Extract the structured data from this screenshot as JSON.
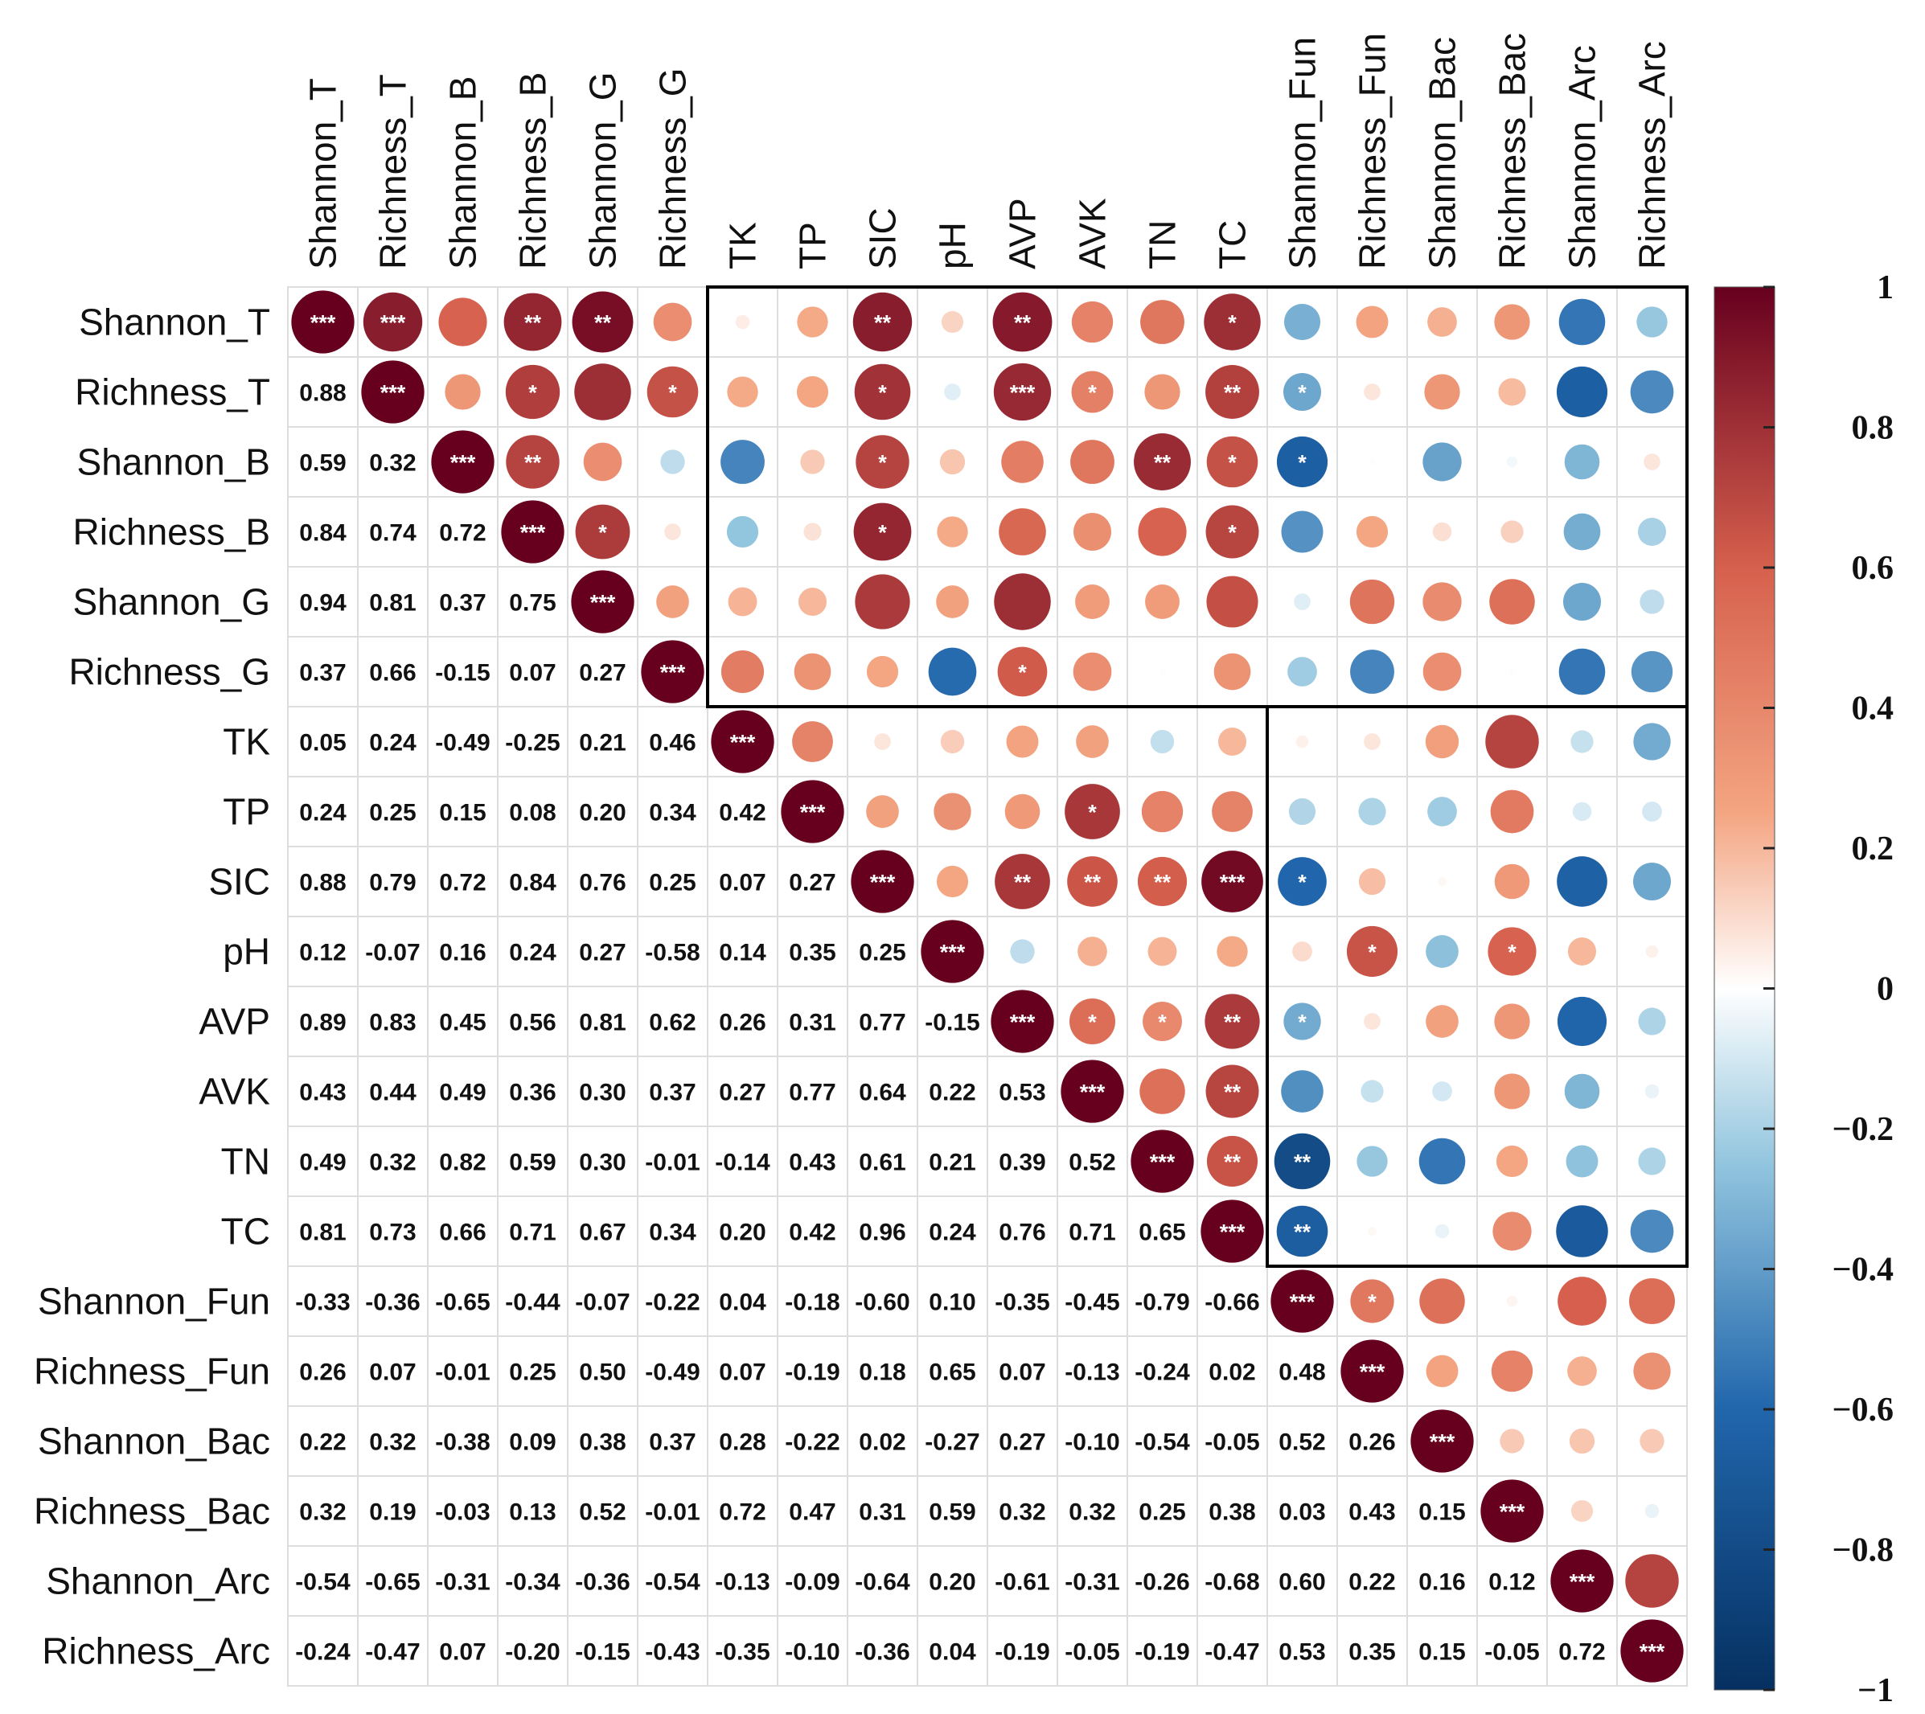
{
  "chart_data": {
    "type": "heatmap",
    "subtype": "correlation-matrix",
    "variables": [
      "Shannon_T",
      "Richness_T",
      "Shannon_B",
      "Richness_B",
      "Shannon_G",
      "Richness_G",
      "TK",
      "TP",
      "SIC",
      "pH",
      "AVP",
      "AVK",
      "TN",
      "TC",
      "Shannon_Fun",
      "Richness_Fun",
      "Shannon_Bac",
      "Richness_Bac",
      "Shannon_Arc",
      "Richness_Arc"
    ],
    "lower_triangle_values": [
      [],
      [
        0.88
      ],
      [
        0.59,
        0.32
      ],
      [
        0.84,
        0.74,
        0.72
      ],
      [
        0.94,
        0.81,
        0.37,
        0.75
      ],
      [
        0.37,
        0.66,
        -0.15,
        0.07,
        0.27
      ],
      [
        0.05,
        0.24,
        -0.49,
        -0.25,
        0.21,
        0.46
      ],
      [
        0.24,
        0.25,
        0.15,
        0.08,
        0.2,
        0.34,
        0.42
      ],
      [
        0.88,
        0.79,
        0.72,
        0.84,
        0.76,
        0.25,
        0.07,
        0.27
      ],
      [
        0.12,
        -0.07,
        0.16,
        0.24,
        0.27,
        -0.58,
        0.14,
        0.35,
        0.25
      ],
      [
        0.89,
        0.83,
        0.45,
        0.56,
        0.81,
        0.62,
        0.26,
        0.31,
        0.77,
        -0.15
      ],
      [
        0.43,
        0.44,
        0.49,
        0.36,
        0.3,
        0.37,
        0.27,
        0.77,
        0.64,
        0.22,
        0.53
      ],
      [
        0.49,
        0.32,
        0.82,
        0.59,
        0.3,
        -0.01,
        -0.14,
        0.43,
        0.61,
        0.21,
        0.39,
        0.52
      ],
      [
        0.81,
        0.73,
        0.66,
        0.71,
        0.67,
        0.34,
        0.2,
        0.42,
        0.96,
        0.24,
        0.76,
        0.71,
        0.65
      ],
      [
        -0.33,
        -0.36,
        -0.65,
        -0.44,
        -0.07,
        -0.22,
        0.04,
        -0.18,
        -0.6,
        0.1,
        -0.35,
        -0.45,
        -0.79,
        -0.66
      ],
      [
        0.26,
        0.07,
        -0.01,
        0.25,
        0.5,
        -0.49,
        0.07,
        -0.19,
        0.18,
        0.65,
        0.07,
        -0.13,
        -0.24,
        0.02,
        0.48
      ],
      [
        0.22,
        0.32,
        -0.38,
        0.09,
        0.38,
        0.37,
        0.28,
        -0.22,
        0.02,
        -0.27,
        0.27,
        -0.1,
        -0.54,
        -0.05,
        0.52,
        0.26
      ],
      [
        0.32,
        0.19,
        -0.03,
        0.13,
        0.52,
        -0.01,
        0.72,
        0.47,
        0.31,
        0.59,
        0.32,
        0.32,
        0.25,
        0.38,
        0.03,
        0.43,
        0.15
      ],
      [
        -0.54,
        -0.65,
        -0.31,
        -0.34,
        -0.36,
        -0.54,
        -0.13,
        -0.09,
        -0.64,
        0.2,
        -0.61,
        -0.31,
        -0.26,
        -0.68,
        0.6,
        0.22,
        0.16,
        0.12
      ],
      [
        -0.24,
        -0.47,
        0.07,
        -0.2,
        -0.15,
        -0.43,
        -0.35,
        -0.1,
        -0.36,
        0.04,
        -0.19,
        -0.05,
        -0.19,
        -0.47,
        0.53,
        0.35,
        0.15,
        -0.05,
        0.72
      ]
    ],
    "upper_triangle_significance": [
      [
        "***",
        "***",
        "",
        "**",
        "**",
        "",
        "",
        "",
        "**",
        "",
        "**",
        "",
        "",
        "*",
        "",
        "",
        "",
        "",
        "",
        ""
      ],
      [
        "",
        "***",
        "",
        "*",
        "",
        "*",
        "",
        "",
        "*",
        "",
        "***",
        "*",
        "",
        "**",
        "*",
        "",
        "",
        "",
        "",
        ""
      ],
      [
        "",
        "",
        "***",
        "**",
        "",
        "",
        "",
        "",
        "*",
        "",
        "",
        "",
        "**",
        "*",
        "*",
        "",
        "",
        "",
        "",
        ""
      ],
      [
        "",
        "",
        "",
        "***",
        "*",
        "",
        "",
        "",
        "*",
        "",
        "",
        "",
        "",
        "*",
        "",
        "",
        "",
        "",
        "",
        ""
      ],
      [
        "",
        "",
        "",
        "",
        "***",
        "",
        "",
        "",
        "",
        "",
        "",
        "",
        "",
        "",
        "",
        "",
        "",
        "",
        "",
        ""
      ],
      [
        "",
        "",
        "",
        "",
        "",
        "***",
        "",
        "",
        "",
        "",
        "*",
        "",
        "",
        "",
        "",
        "",
        "",
        "",
        "",
        ""
      ],
      [
        "",
        "",
        "",
        "",
        "",
        "",
        "***",
        "",
        "",
        "",
        "",
        "",
        "",
        "",
        "",
        "",
        "",
        "",
        "",
        ""
      ],
      [
        "",
        "",
        "",
        "",
        "",
        "",
        "",
        "***",
        "",
        "",
        "",
        "*",
        "",
        "",
        "",
        "",
        "",
        "",
        "",
        ""
      ],
      [
        "",
        "",
        "",
        "",
        "",
        "",
        "",
        "",
        "***",
        "",
        "**",
        "**",
        "**",
        "***",
        "*",
        "",
        "",
        "",
        "",
        ""
      ],
      [
        "",
        "",
        "",
        "",
        "",
        "",
        "",
        "",
        "",
        "***",
        "",
        "",
        "",
        "",
        "",
        "*",
        "",
        "*",
        "",
        ""
      ],
      [
        "",
        "",
        "",
        "",
        "",
        "",
        "",
        "",
        "",
        "",
        "***",
        "*",
        "*",
        "**",
        "*",
        "",
        "",
        "",
        "",
        ""
      ],
      [
        "",
        "",
        "",
        "",
        "",
        "",
        "",
        "",
        "",
        "",
        "",
        "***",
        "",
        "**",
        "",
        "",
        "",
        "",
        "",
        ""
      ],
      [
        "",
        "",
        "",
        "",
        "",
        "",
        "",
        "",
        "",
        "",
        "",
        "",
        "***",
        "**",
        "**",
        "",
        "",
        "",
        "",
        ""
      ],
      [
        "",
        "",
        "",
        "",
        "",
        "",
        "",
        "",
        "",
        "",
        "",
        "",
        "",
        "***",
        "**",
        "",
        "",
        "",
        "",
        ""
      ],
      [
        "",
        "",
        "",
        "",
        "",
        "",
        "",
        "",
        "",
        "",
        "",
        "",
        "",
        "",
        "***",
        "*",
        "",
        "",
        "",
        ""
      ],
      [
        "",
        "",
        "",
        "",
        "",
        "",
        "",
        "",
        "",
        "",
        "",
        "",
        "",
        "",
        "",
        "***",
        "",
        "",
        "",
        ""
      ],
      [
        "",
        "",
        "",
        "",
        "",
        "",
        "",
        "",
        "",
        "",
        "",
        "",
        "",
        "",
        "",
        "",
        "***",
        "",
        "",
        ""
      ],
      [
        "",
        "",
        "",
        "",
        "",
        "",
        "",
        "",
        "",
        "",
        "",
        "",
        "",
        "",
        "",
        "",
        "",
        "***",
        "",
        ""
      ],
      [
        "",
        "",
        "",
        "",
        "",
        "",
        "",
        "",
        "",
        "",
        "",
        "",
        "",
        "",
        "",
        "",
        "",
        "",
        "***",
        ""
      ],
      [
        "",
        "",
        "",
        "",
        "",
        "",
        "",
        "",
        "",
        "",
        "",
        "",
        "",
        "",
        "",
        "",
        "",
        "",
        "",
        "***"
      ]
    ],
    "colorbar": {
      "range": [
        -1,
        1
      ],
      "tick_labels": [
        "1",
        "0.8",
        "0.6",
        "0.4",
        "0.2",
        "0",
        "−0.2",
        "−0.4",
        "−0.6",
        "−0.8",
        "−1"
      ],
      "tick_values": [
        1,
        0.8,
        0.6,
        0.4,
        0.2,
        0,
        -0.2,
        -0.4,
        -0.6,
        -0.8,
        -1
      ]
    },
    "color_scale": {
      "negative_strong": "#053061",
      "negative_mid": "#2166ac",
      "negative_light": "#92c5de",
      "neutral": "#ffffff",
      "positive_light": "#f4a582",
      "positive_mid": "#d6604d",
      "positive_strong": "#67001f"
    },
    "upper_glyph": "circle (size and color scale with correlation)",
    "lower_glyph": "number",
    "highlight_boxes": [
      {
        "rows": [
          "Shannon_T",
          "Richness_G"
        ],
        "cols": [
          "TK",
          "Richness_Arc"
        ]
      },
      {
        "rows": [
          "TK",
          "TC"
        ],
        "cols": [
          "Shannon_Fun",
          "Richness_Arc"
        ]
      }
    ]
  }
}
